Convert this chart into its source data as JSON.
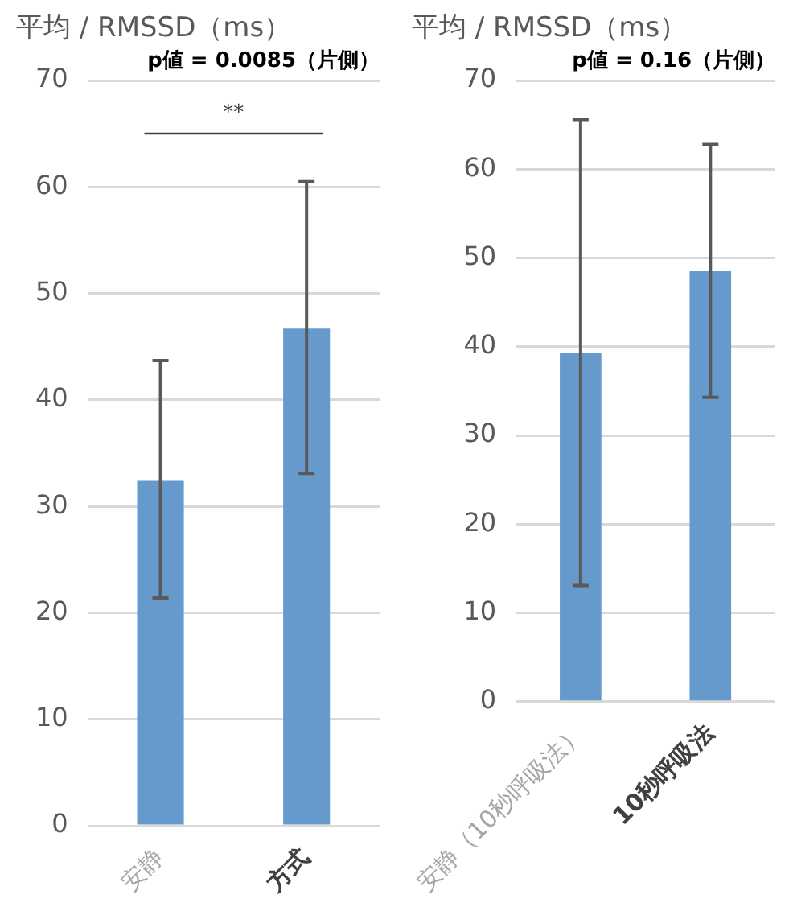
{
  "chart_data": [
    {
      "type": "bar",
      "title": "平均 / RMSSD（ms）",
      "subtitle": "p値 = 0.0085（片側）",
      "categories": [
        "安静",
        "方式"
      ],
      "values": [
        32.4,
        46.7
      ],
      "errors": [
        [
          21.4,
          43.7
        ],
        [
          33.1,
          60.5
        ]
      ],
      "color": "#6699cc",
      "ylim": [
        0,
        70
      ],
      "yticks": [
        0,
        10,
        20,
        30,
        40,
        50,
        60,
        70
      ],
      "grid": "y",
      "annotations": [
        "**"
      ]
    },
    {
      "type": "bar",
      "title": "平均 / RMSSD（ms）",
      "subtitle": "p値 = 0.16（片側）",
      "categories": [
        "安静（10秒呼吸法）",
        "10秒呼吸法"
      ],
      "values": [
        39.3,
        48.5
      ],
      "errors": [
        [
          13.1,
          65.6
        ],
        [
          34.3,
          62.8
        ]
      ],
      "color": "#6699cc",
      "ylim": [
        0,
        70
      ],
      "yticks": [
        0,
        10,
        20,
        30,
        40,
        50,
        60,
        70
      ],
      "grid": "y"
    }
  ]
}
